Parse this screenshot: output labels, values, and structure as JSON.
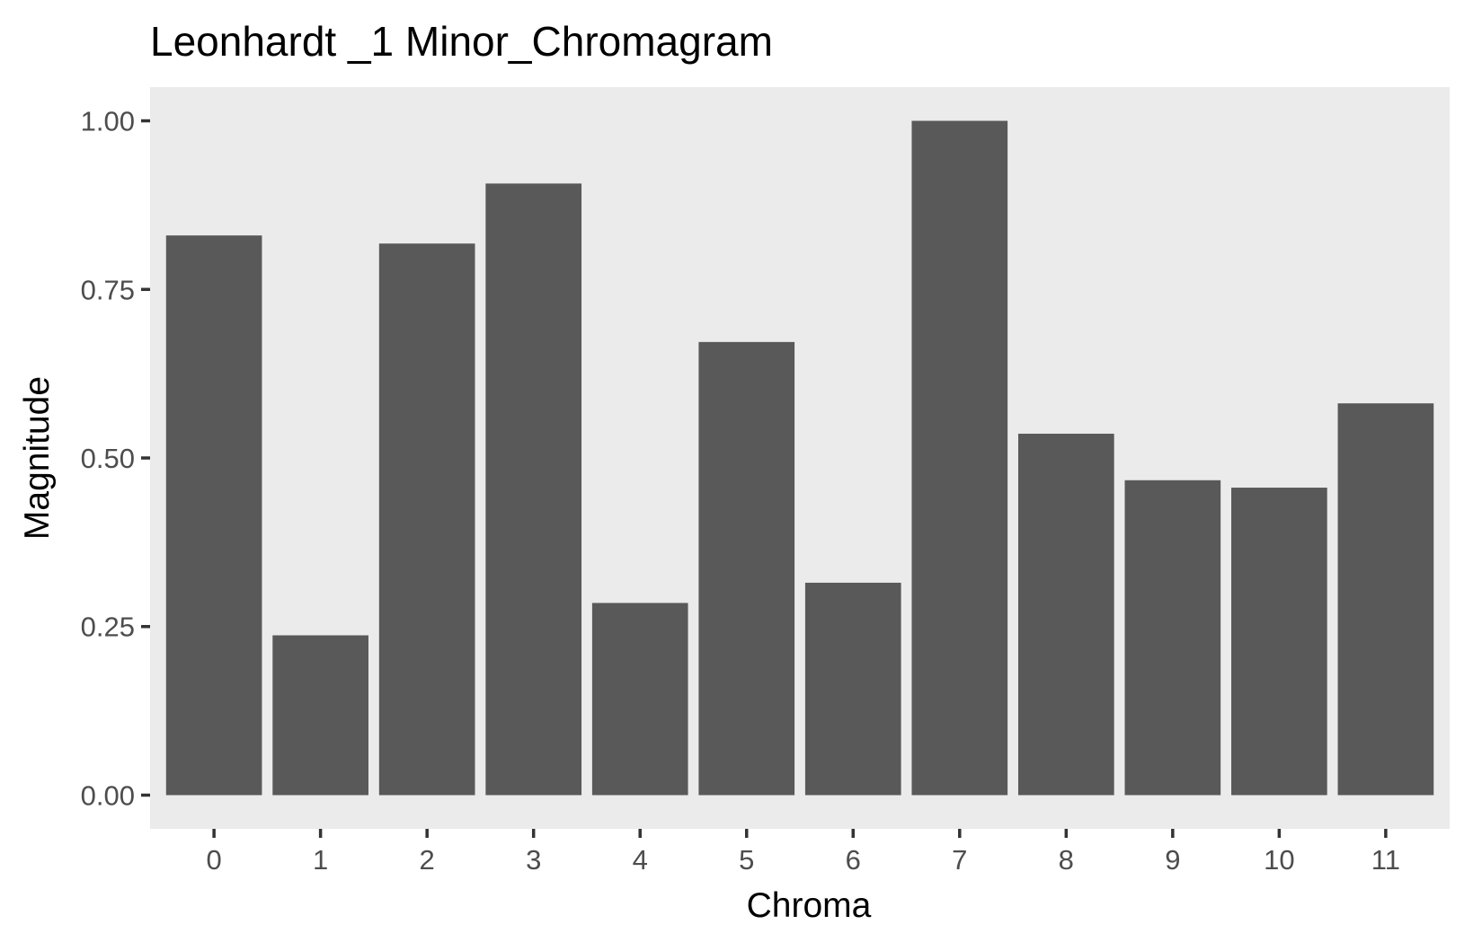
{
  "chart_data": {
    "type": "bar",
    "title": "Leonhardt _1 Minor_Chromagram",
    "xlabel": "Chroma",
    "ylabel": "Magnitude",
    "categories": [
      "0",
      "1",
      "2",
      "3",
      "4",
      "5",
      "6",
      "7",
      "8",
      "9",
      "10",
      "11"
    ],
    "values": [
      0.83,
      0.237,
      0.818,
      0.907,
      0.285,
      0.672,
      0.315,
      1.0,
      0.536,
      0.467,
      0.456,
      0.581
    ],
    "ylim": [
      -0.05,
      1.05
    ],
    "yticks": [
      0,
      0.25,
      0.5,
      0.75,
      1.0
    ],
    "ytick_labels": [
      "0.00",
      "0.25",
      "0.50",
      "0.75",
      "1.00"
    ],
    "grid": false,
    "legend": "none",
    "colors": {
      "bar": "#595959",
      "panel": "#ebebeb",
      "background": "#ffffff",
      "tick": "#333333",
      "tick_text": "#4d4d4d"
    }
  }
}
